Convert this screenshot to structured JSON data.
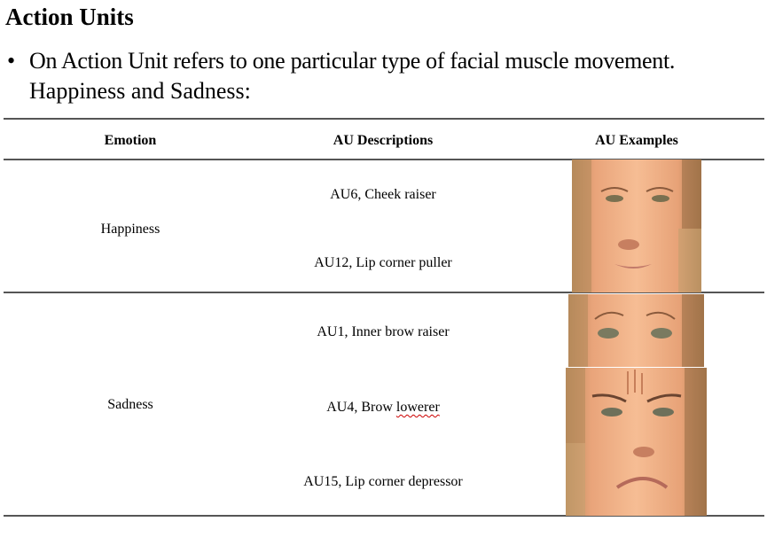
{
  "title": "Action Units",
  "bullet": {
    "line1": "On Action Unit refers to one particular type of facial muscle movement.",
    "line2": "Happiness and Sadness:"
  },
  "table": {
    "headers": [
      "Emotion",
      "AU Descriptions",
      "AU Examples"
    ],
    "rows": [
      {
        "emotion": "Happiness",
        "aus": [
          {
            "label": "AU6, Cheek raiser",
            "image": "face-eyes-cheek-raiser"
          },
          {
            "label": "AU12, Lip corner puller",
            "image": "face-mouth-smile"
          }
        ]
      },
      {
        "emotion": "Sadness",
        "aus": [
          {
            "label": "AU1, Inner brow raiser",
            "image": "face-eyes-brow-raised"
          },
          {
            "label_prefix": "AU4, Brow ",
            "label_flagged": "lowerer",
            "image": "face-eyes-frown"
          },
          {
            "label": "AU15, Lip corner depressor",
            "image": "face-mouth-frown"
          }
        ]
      }
    ]
  }
}
